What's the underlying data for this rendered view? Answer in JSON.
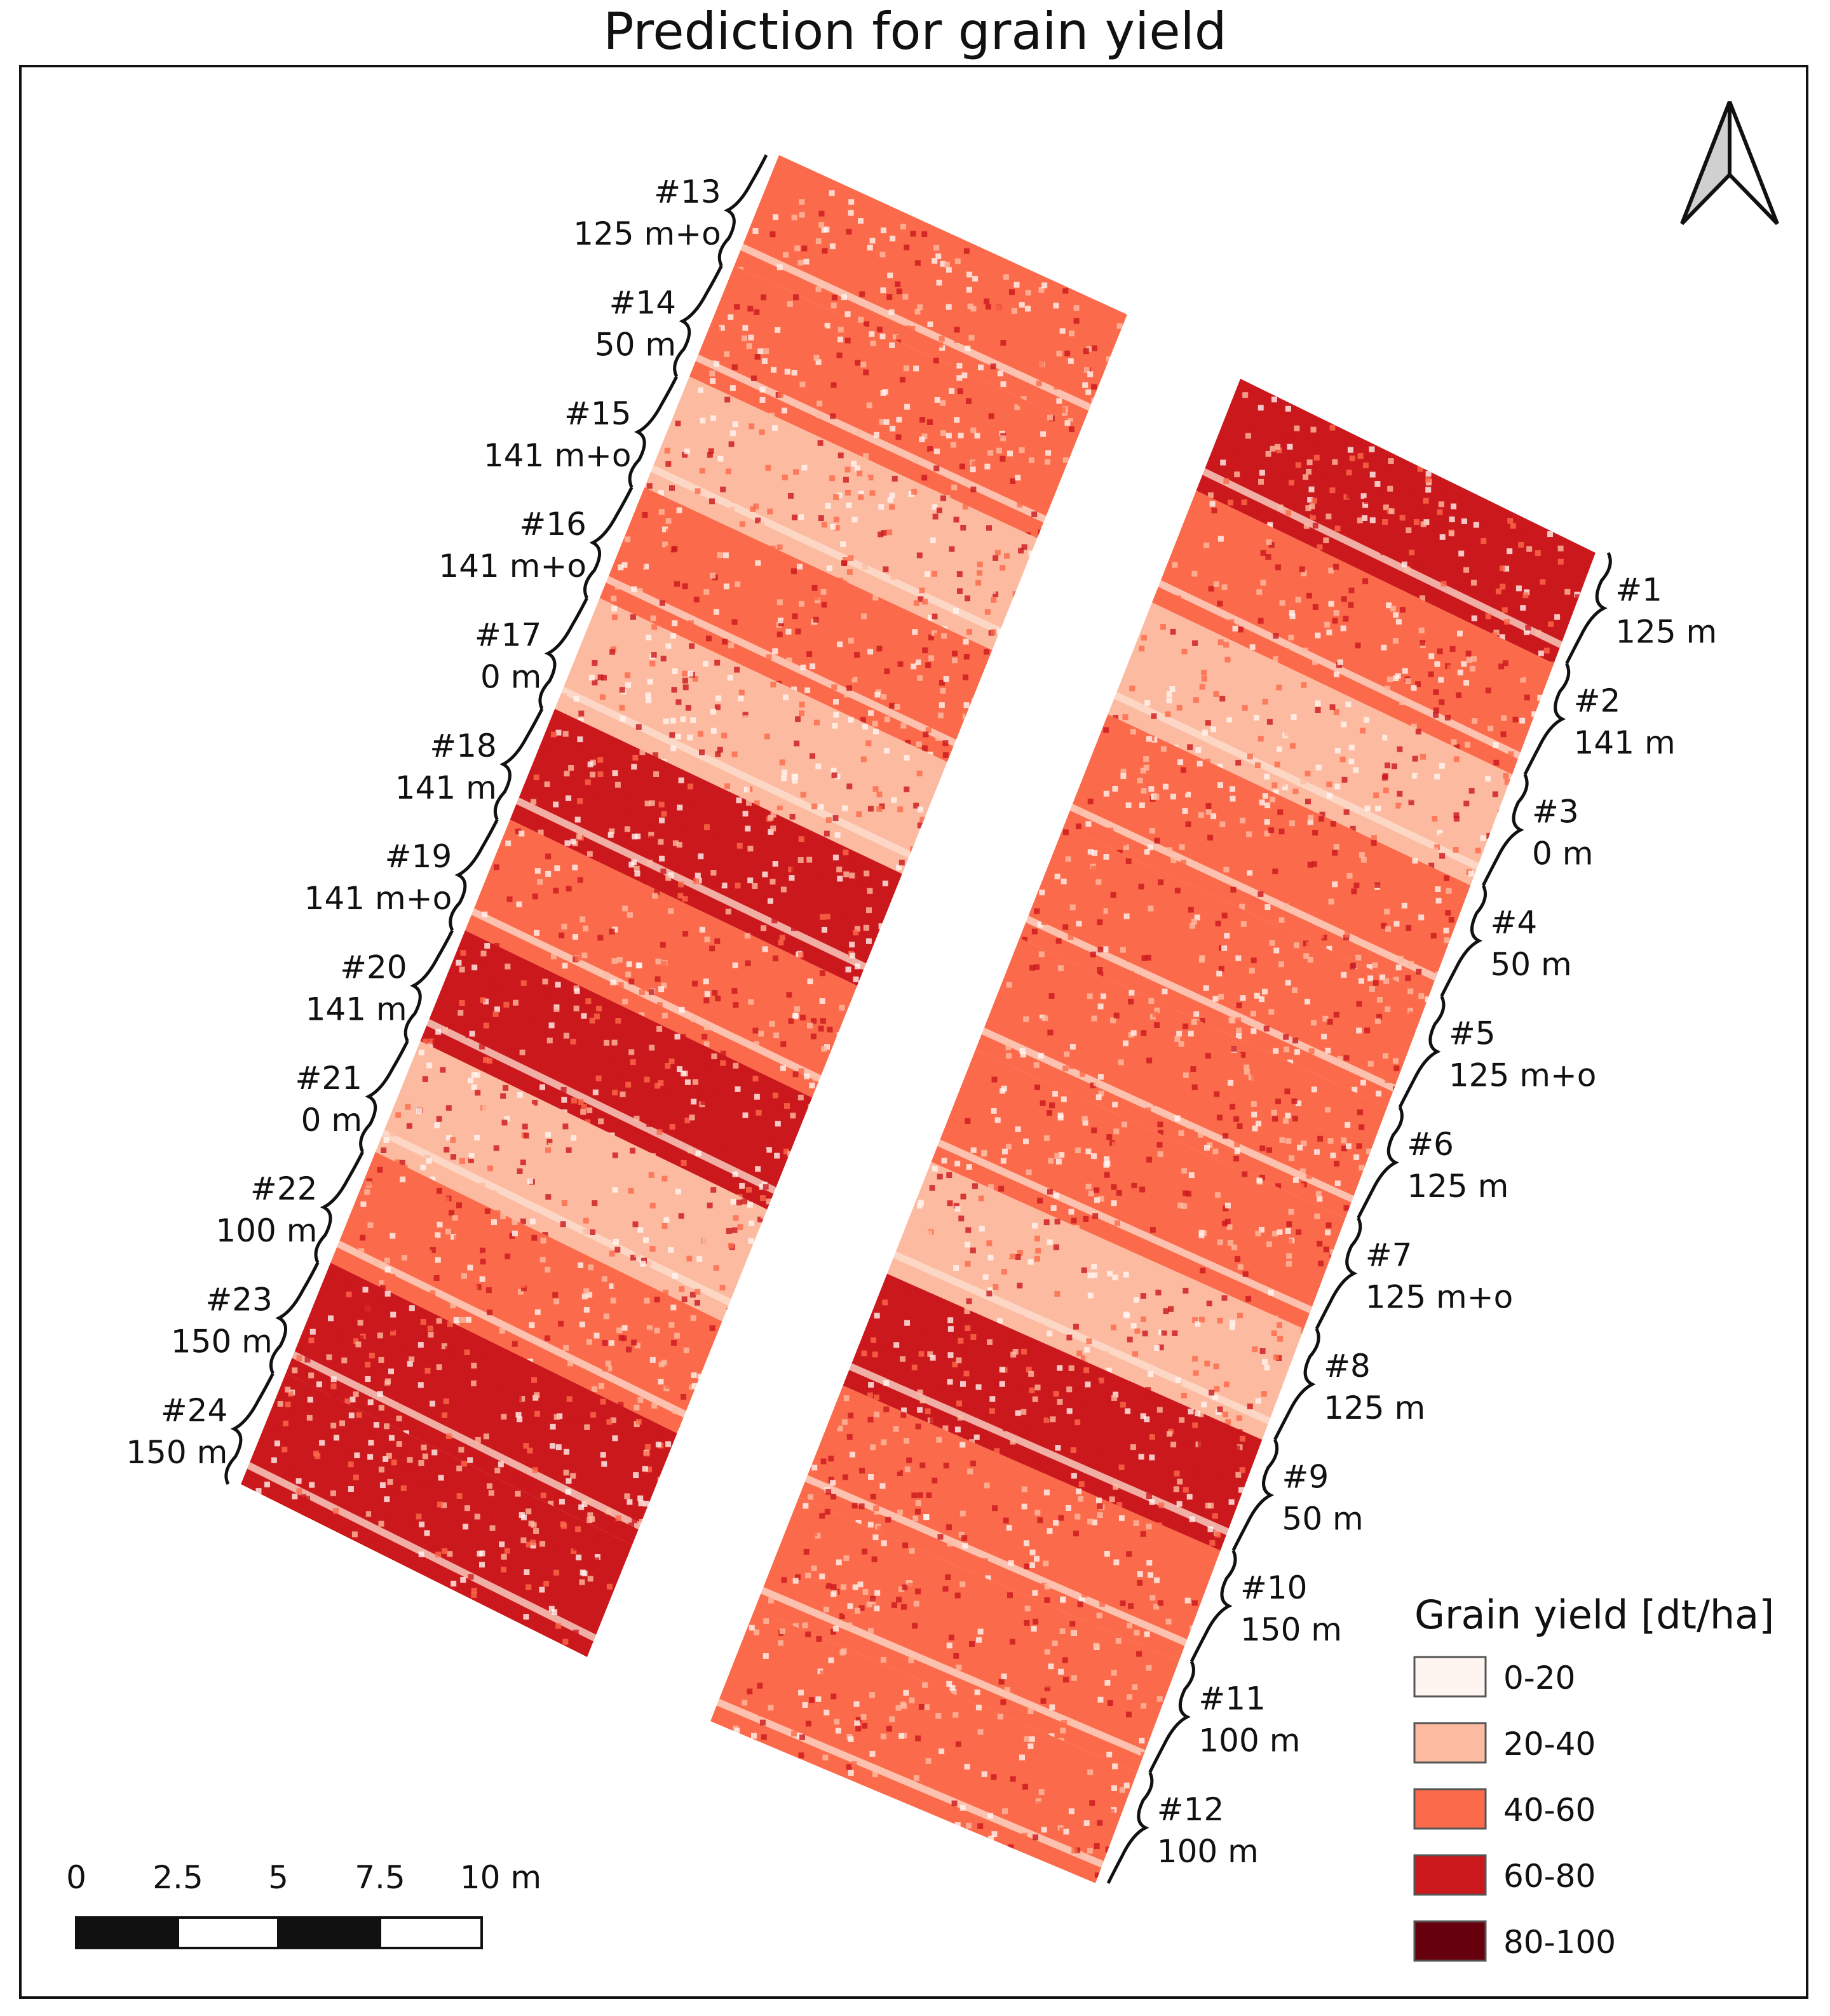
{
  "title": "Prediction for grain yield",
  "legend": {
    "title": "Grain yield [dt/ha]",
    "classes": [
      {
        "label": "0-20",
        "color": "#fff5f0"
      },
      {
        "label": "20-40",
        "color": "#fcbba1"
      },
      {
        "label": "40-60",
        "color": "#fb6a4a"
      },
      {
        "label": "60-80",
        "color": "#cb181d"
      },
      {
        "label": "80-100",
        "color": "#67000d"
      }
    ]
  },
  "scale_bar": {
    "ticks": [
      "0",
      "2.5",
      "5",
      "7.5",
      "10 m"
    ]
  },
  "north_arrow": "north-arrow-icon",
  "field_east": {
    "plots": [
      {
        "id": "#1",
        "treatment": "125 m",
        "dominant": "60-80"
      },
      {
        "id": "#2",
        "treatment": "141 m",
        "dominant": "40-60"
      },
      {
        "id": "#3",
        "treatment": "0 m",
        "dominant": "20-40"
      },
      {
        "id": "#4",
        "treatment": "50 m",
        "dominant": "40-60"
      },
      {
        "id": "#5",
        "treatment": "125 m+o",
        "dominant": "40-60"
      },
      {
        "id": "#6",
        "treatment": "125 m",
        "dominant": "40-60"
      },
      {
        "id": "#7",
        "treatment": "125 m+o",
        "dominant": "40-60"
      },
      {
        "id": "#8",
        "treatment": "125 m",
        "dominant": "20-40"
      },
      {
        "id": "#9",
        "treatment": "50 m",
        "dominant": "60-80"
      },
      {
        "id": "#10",
        "treatment": "150 m",
        "dominant": "40-60"
      },
      {
        "id": "#11",
        "treatment": "100 m",
        "dominant": "40-60"
      },
      {
        "id": "#12",
        "treatment": "100 m",
        "dominant": "40-60"
      }
    ]
  },
  "field_west": {
    "plots": [
      {
        "id": "#13",
        "treatment": "125 m+o",
        "dominant": "40-60"
      },
      {
        "id": "#14",
        "treatment": "50 m",
        "dominant": "40-60"
      },
      {
        "id": "#15",
        "treatment": "141 m+o",
        "dominant": "20-40"
      },
      {
        "id": "#16",
        "treatment": "141 m+o",
        "dominant": "40-60"
      },
      {
        "id": "#17",
        "treatment": "0 m",
        "dominant": "20-40"
      },
      {
        "id": "#18",
        "treatment": "141 m",
        "dominant": "60-80"
      },
      {
        "id": "#19",
        "treatment": "141 m+o",
        "dominant": "40-60"
      },
      {
        "id": "#20",
        "treatment": "141 m",
        "dominant": "60-80"
      },
      {
        "id": "#21",
        "treatment": "0 m",
        "dominant": "20-40"
      },
      {
        "id": "#22",
        "treatment": "100 m",
        "dominant": "40-60"
      },
      {
        "id": "#23",
        "treatment": "150 m",
        "dominant": "60-80"
      },
      {
        "id": "#24",
        "treatment": "150 m",
        "dominant": "60-80"
      }
    ]
  }
}
